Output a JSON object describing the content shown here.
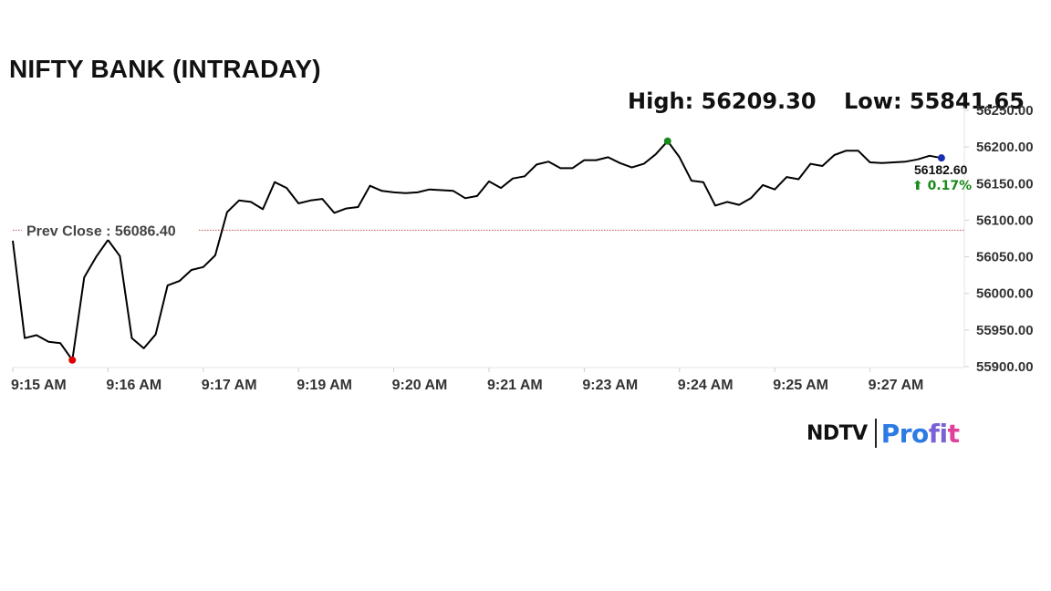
{
  "header": {
    "title": "NIFTY BANK (INTRADAY)",
    "high_text": "High: 56209.30",
    "low_text": "Low: 55841.65"
  },
  "logo": {
    "ndtv": "NDTV",
    "profit_a": "Pro",
    "profit_b": "fi",
    "profit_c": "t"
  },
  "chart_data": {
    "type": "line",
    "ylim": [
      55900,
      56250
    ],
    "yticks": [
      55900,
      55950,
      56000,
      56050,
      56100,
      56150,
      56200,
      56250
    ],
    "ytick_labels": [
      "55900.00",
      "55950.00",
      "56000.00",
      "56050.00",
      "56100.00",
      "56150.00",
      "56200.00",
      "56250.00"
    ],
    "xtick_labels": [
      "9:15 AM",
      "9:16 AM",
      "9:17 AM",
      "9:19 AM",
      "9:20 AM",
      "9:21 AM",
      "9:23 AM",
      "9:24 AM",
      "9:25 AM",
      "9:27 AM"
    ],
    "prev_close": 56086.4,
    "prev_close_label": "Prev Close : 56086.40",
    "last_value_label": "56182.60",
    "change_label": "⬆ 0.17%",
    "colors": {
      "line": "#000000",
      "low_marker": "#e00000",
      "high_marker": "#1a8a1a",
      "last_marker": "#1a2fb0",
      "change": "#1a8a1a",
      "prev_close": "#c0504d"
    },
    "segments": [
      [
        56072,
        55939,
        55943,
        55934,
        55932,
        55909,
        56022,
        56050,
        56073
      ],
      [
        56073,
        56051,
        55939,
        55925,
        55944,
        56011,
        56017,
        56032,
        56036,
        56052,
        56111,
        56127,
        56125,
        56115,
        56152,
        56144,
        56123,
        56127,
        56129,
        56110,
        56116,
        56118,
        56147,
        56140,
        56138,
        56137,
        56138,
        56142,
        56141,
        56140,
        56130,
        56133,
        56153,
        56144,
        56157,
        56160,
        56176,
        56180,
        56171,
        56171,
        56182,
        56182,
        56186,
        56178,
        56172,
        56177,
        56190,
        56208,
        56186,
        56154,
        56152,
        56120,
        56125,
        56121,
        56130,
        56148,
        56142,
        56159,
        56156,
        56177,
        56174,
        56189,
        56195,
        56195,
        56179,
        56178,
        56179,
        56180,
        56183
      ],
      [
        56183,
        56188,
        56185
      ]
    ]
  }
}
